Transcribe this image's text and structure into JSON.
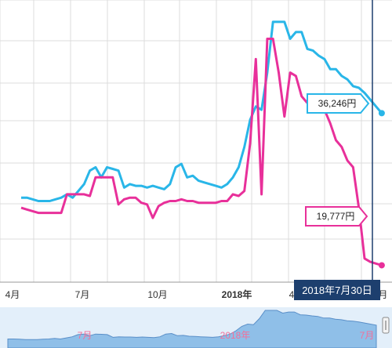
{
  "chart_data": {
    "type": "line",
    "x": [
      "2017-04",
      "2017-04",
      "2017-04",
      "2017-05",
      "2017-05",
      "2017-05",
      "2017-05",
      "2017-06",
      "2017-06",
      "2017-06",
      "2017-06",
      "2017-07",
      "2017-07",
      "2017-07",
      "2017-07",
      "2017-08",
      "2017-08",
      "2017-08",
      "2017-08",
      "2017-09",
      "2017-09",
      "2017-09",
      "2017-09",
      "2017-10",
      "2017-10",
      "2017-10",
      "2017-10",
      "2017-11",
      "2017-11",
      "2017-11",
      "2017-11",
      "2017-12",
      "2017-12",
      "2017-12",
      "2017-12",
      "2017-12",
      "2018-01",
      "2018-01",
      "2018-01",
      "2018-01",
      "2018-02",
      "2018-02",
      "2018-02",
      "2018-02",
      "2018-03",
      "2018-03",
      "2018-03",
      "2018-03",
      "2018-04",
      "2018-04",
      "2018-04",
      "2018-04",
      "2018-05",
      "2018-05",
      "2018-05",
      "2018-05",
      "2018-06",
      "2018-06",
      "2018-06",
      "2018-06",
      "2018-07",
      "2018-07",
      "2018-07",
      "2018-07"
    ],
    "series": [
      {
        "color": "#29b6e8",
        "values": [
          45,
          45,
          44.5,
          44,
          44,
          44,
          44.5,
          45,
          46,
          45,
          47,
          49,
          53,
          54,
          51,
          54,
          53.5,
          53,
          48,
          49,
          48.5,
          48.5,
          48,
          48.5,
          48,
          47.5,
          49,
          54,
          55,
          51,
          51.5,
          50,
          49.5,
          49,
          48.5,
          48,
          49,
          51,
          54,
          60,
          68,
          72,
          71,
          82,
          97,
          97,
          97,
          92,
          94,
          94,
          89,
          88.5,
          87,
          86,
          83,
          83,
          81,
          80,
          78,
          77.5,
          76,
          74,
          72,
          70
        ]
      },
      {
        "color": "#e8309a",
        "values": [
          42,
          41.5,
          41,
          40.5,
          40.5,
          40.5,
          40.5,
          40.5,
          46,
          46,
          46,
          46,
          45.5,
          51,
          51,
          51,
          51,
          43,
          44.5,
          45,
          45,
          43.5,
          43,
          39,
          42.5,
          43.5,
          44,
          44,
          44.5,
          44,
          44,
          43.5,
          43.5,
          43.5,
          43.5,
          44,
          44,
          46,
          45.5,
          47,
          61,
          86,
          46,
          92,
          92,
          82,
          69,
          82,
          81,
          75,
          73,
          72,
          72,
          71,
          67,
          62,
          60,
          56,
          54,
          42,
          27,
          26,
          25.5,
          25
        ]
      }
    ],
    "x_ticks": [
      "4月",
      "7月",
      "10月",
      "2018年",
      "4",
      "7月"
    ],
    "y_range": [
      20,
      100
    ],
    "grid": true,
    "legend": "none",
    "annotations": [
      {
        "label": "36,246円",
        "color": "#29b6e8"
      },
      {
        "label": "19,777円",
        "color": "#e8309a"
      },
      {
        "label": "2018年7月30日"
      }
    ],
    "navigator_ticks": [
      "7月",
      "2018年",
      "7月"
    ]
  }
}
